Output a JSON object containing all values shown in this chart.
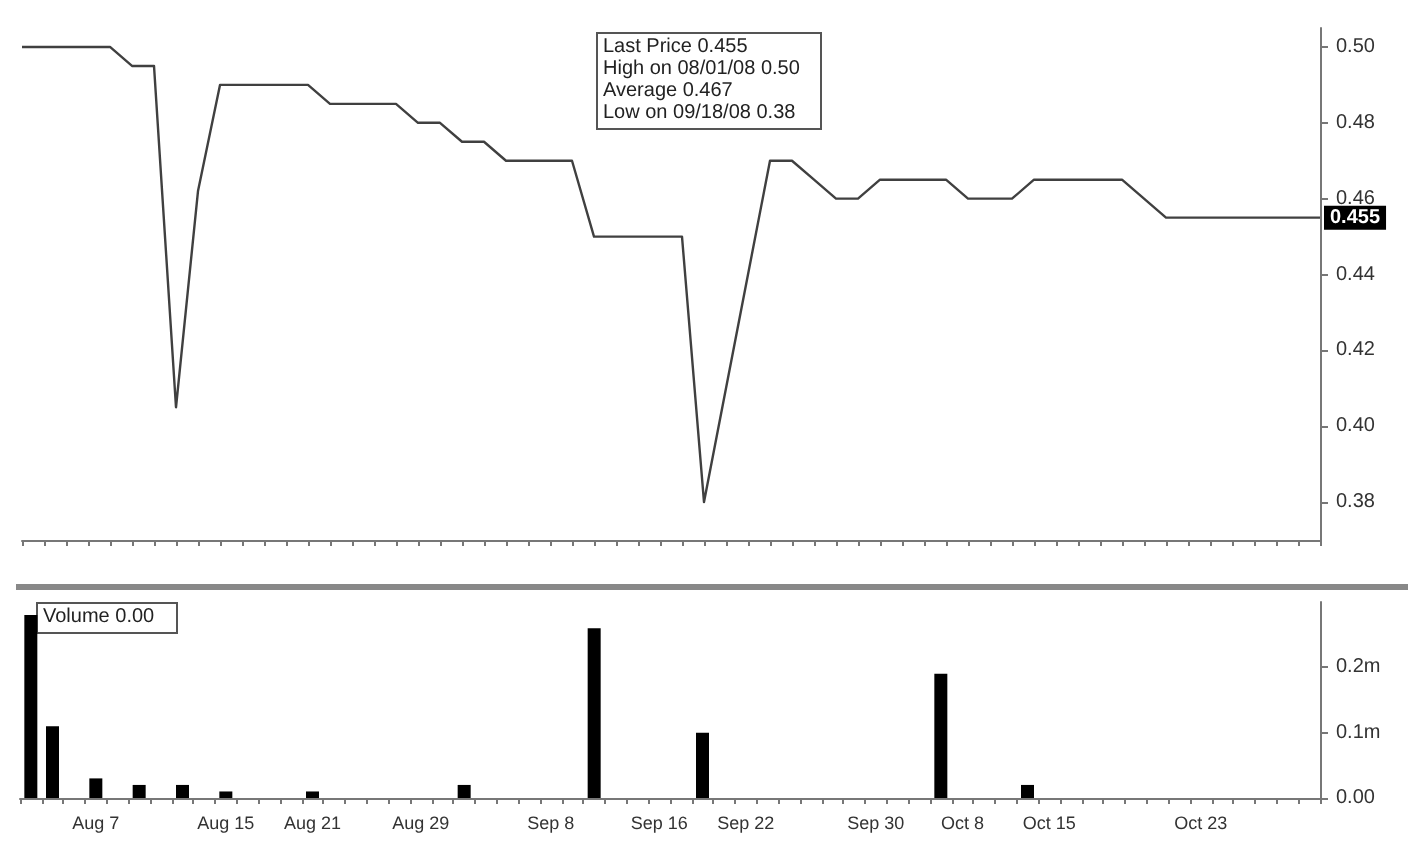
{
  "chart_data": [
    {
      "type": "line",
      "categories": [
        null,
        null,
        null,
        null,
        null,
        null,
        null,
        null,
        null,
        null,
        null,
        null,
        null,
        null,
        null,
        null,
        null,
        null,
        null,
        null,
        null,
        null,
        null,
        null,
        null,
        null,
        null,
        null,
        null,
        null,
        null,
        null,
        null,
        null,
        null,
        null,
        null,
        null,
        null,
        null,
        null,
        null,
        null,
        null,
        null,
        null,
        null,
        null,
        null,
        null,
        null,
        null,
        null,
        null,
        null,
        null,
        null,
        null,
        null,
        null
      ],
      "series": [
        {
          "color": "#404040",
          "values": [
            0.5,
            0.5,
            0.5,
            0.5,
            0.5,
            0.495,
            0.495,
            0.405,
            0.462,
            0.49,
            0.49,
            0.49,
            0.49,
            0.49,
            0.485,
            0.485,
            0.485,
            0.485,
            0.48,
            0.48,
            0.475,
            0.475,
            0.47,
            0.47,
            0.47,
            0.47,
            0.45,
            0.45,
            0.45,
            0.45,
            0.45,
            0.38,
            0.41,
            0.44,
            0.47,
            0.47,
            0.465,
            0.46,
            0.46,
            0.465,
            0.465,
            0.465,
            0.465,
            0.46,
            0.46,
            0.46,
            0.465,
            0.465,
            0.465,
            0.465,
            0.465,
            0.46,
            0.455,
            0.455,
            0.455,
            0.455,
            0.455,
            0.455,
            0.455,
            0.455
          ]
        }
      ],
      "ylim": [
        0.37,
        0.505
      ],
      "yticks": [
        {
          "value": 0.38,
          "label": "0.38"
        },
        {
          "value": 0.4,
          "label": "0.40"
        },
        {
          "value": 0.42,
          "label": "0.42"
        },
        {
          "value": 0.44,
          "label": "0.44"
        },
        {
          "value": 0.46,
          "label": "0.46"
        },
        {
          "value": 0.48,
          "label": "0.48"
        },
        {
          "value": 0.5,
          "label": "0.50"
        }
      ],
      "grid": false,
      "marker": "none",
      "line_style": "solid",
      "annotations": [
        "Last Price 0.455",
        "High on 08/01/08 0.50",
        "Average 0.467",
        "Low on 09/18/08 0.38",
        {
          "text": "0.455",
          "y": 0.455
        }
      ]
    },
    {
      "type": "bar",
      "categories": [
        null,
        null,
        null,
        "Aug 7",
        null,
        null,
        null,
        null,
        null,
        "Aug 15",
        null,
        null,
        null,
        "Aug 21",
        null,
        null,
        null,
        null,
        "Aug 29",
        null,
        null,
        null,
        null,
        null,
        "Sep 8",
        null,
        null,
        null,
        null,
        "Sep 16",
        null,
        null,
        null,
        "Sep 22",
        null,
        null,
        null,
        null,
        null,
        "Sep 30",
        null,
        null,
        null,
        "Oct 8",
        null,
        null,
        null,
        "Oct 15",
        null,
        null,
        null,
        null,
        null,
        null,
        "Oct 23",
        null,
        null,
        null,
        null,
        null
      ],
      "series": [
        {
          "color": "#000000",
          "values": [
            0.28,
            0.11,
            0,
            0.03,
            0,
            0.02,
            0,
            0.02,
            0,
            0.01,
            0,
            0,
            0,
            0.01,
            0,
            0,
            0,
            0,
            0,
            0,
            0.02,
            0,
            0,
            0,
            0,
            0,
            0.26,
            0,
            0,
            0,
            0,
            0.1,
            0,
            0,
            0,
            0,
            0,
            0,
            0,
            0,
            0,
            0,
            0.19,
            0,
            0,
            0,
            0.02,
            0,
            0,
            0,
            0,
            0,
            0,
            0,
            0,
            0,
            0,
            0,
            0,
            0
          ]
        }
      ],
      "ylim": [
        0,
        0.3
      ],
      "yticks": [
        {
          "value": 0,
          "label": "0.00"
        },
        {
          "value": 0.1,
          "label": "0.1m"
        },
        {
          "value": 0.2,
          "label": "0.2m"
        }
      ],
      "grid": false,
      "annotations": [
        "Volume 0.00"
      ]
    }
  ]
}
